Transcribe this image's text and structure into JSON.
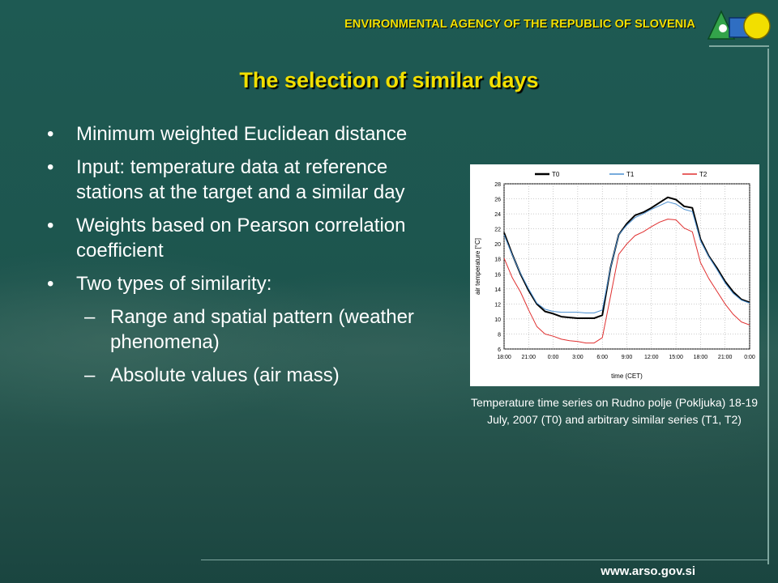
{
  "header": {
    "agency": "ENVIRONMENTAL AGENCY OF THE REPUBLIC OF SLOVENIA"
  },
  "title": "The selection of similar days",
  "bullets": [
    {
      "text": "Minimum weighted Euclidean distance"
    },
    {
      "text": "Input: temperature data at reference stations at the target and a similar day"
    },
    {
      "text": "Weights based on Pearson correlation coefficient"
    },
    {
      "text": "Two types of similarity:"
    }
  ],
  "sub_bullets": [
    {
      "text": "Range and spatial pattern (weather phenomena)"
    },
    {
      "text": "Absolute values (air mass)"
    }
  ],
  "bullet_symbol": "•",
  "dash_symbol": "–",
  "caption": "Temperature time series on Rudno polje (Pokljuka) 18-19 July, 2007 (T0) and arbitrary similar series (T1, T2)",
  "footer": {
    "url": "www.arso.gov.si"
  },
  "colors": {
    "accent": "#f2df00",
    "background": "#1c4f49",
    "t0": "#000000",
    "t1": "#4a8fd0",
    "t2": "#e03030"
  },
  "chart_data": {
    "type": "line",
    "xlabel": "time (CET)",
    "ylabel": "air temperature [°C]",
    "xlim": [
      0,
      30
    ],
    "ylim": [
      6,
      28
    ],
    "x_ticks": [
      "18:00",
      "21:00",
      "0:00",
      "3:00",
      "6:00",
      "9:00",
      "12:00",
      "15:00",
      "18:00",
      "21:00",
      "0:00"
    ],
    "y_ticks": [
      6,
      8,
      10,
      12,
      14,
      16,
      18,
      20,
      22,
      24,
      26,
      28
    ],
    "grid": true,
    "legend_position": "top",
    "x": [
      0,
      1,
      2,
      3,
      4,
      5,
      6,
      7,
      8,
      9,
      10,
      11,
      12,
      13,
      14,
      15,
      16,
      17,
      18,
      19,
      20,
      21,
      22,
      23,
      24,
      25,
      26,
      27,
      28,
      29,
      30
    ],
    "series": [
      {
        "name": "T0",
        "color": "#000000",
        "width": 2,
        "values": [
          21.5,
          18.6,
          16.0,
          13.8,
          12.0,
          11.0,
          10.7,
          10.3,
          10.2,
          10.1,
          10.1,
          10.1,
          10.5,
          16.8,
          21.2,
          22.7,
          23.8,
          24.2,
          24.8,
          25.5,
          26.2,
          25.9,
          25.0,
          24.8,
          20.6,
          18.4,
          16.8,
          15.0,
          13.6,
          12.6,
          12.2
        ]
      },
      {
        "name": "T1",
        "color": "#4a8fd0",
        "width": 1,
        "values": [
          21.2,
          18.5,
          16.1,
          14.0,
          12.1,
          11.3,
          11.0,
          10.9,
          10.9,
          10.9,
          10.8,
          10.8,
          11.2,
          16.8,
          21.2,
          22.5,
          23.5,
          24.0,
          24.6,
          25.1,
          25.6,
          25.3,
          24.6,
          24.3,
          20.4,
          18.3,
          16.6,
          14.8,
          13.4,
          12.5,
          12.1
        ]
      },
      {
        "name": "T2",
        "color": "#e03030",
        "width": 1,
        "values": [
          18.1,
          15.5,
          13.6,
          11.2,
          9.0,
          8.0,
          7.7,
          7.3,
          7.1,
          7.0,
          6.8,
          6.8,
          7.5,
          13.0,
          18.6,
          20.0,
          21.1,
          21.6,
          22.3,
          22.9,
          23.3,
          23.2,
          22.1,
          21.6,
          17.5,
          15.4,
          13.7,
          12.0,
          10.6,
          9.6,
          9.2
        ]
      }
    ]
  }
}
